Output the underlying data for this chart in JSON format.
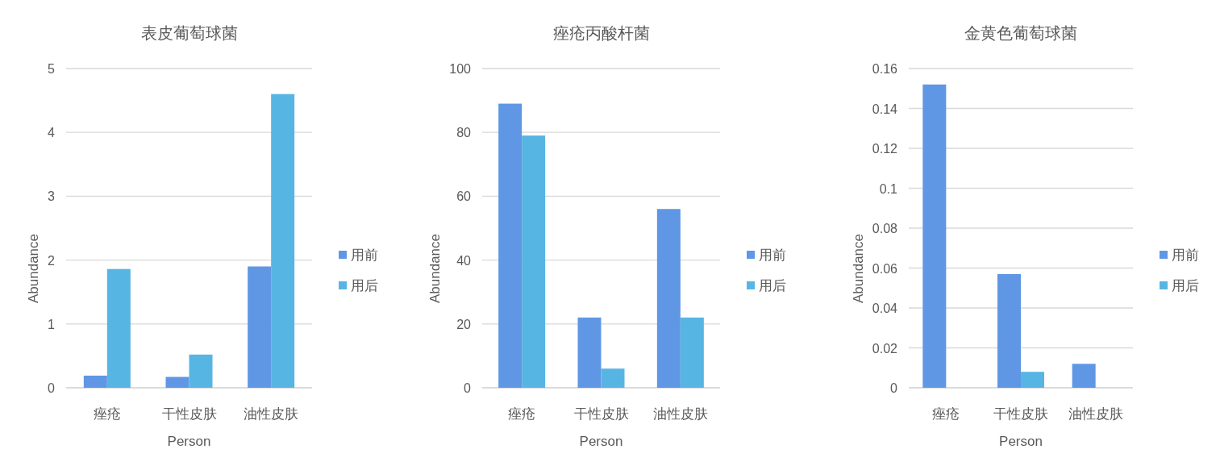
{
  "chart_data": [
    {
      "type": "bar",
      "title": "表皮葡萄球菌",
      "xlabel": "Person",
      "ylabel": "Abundance",
      "categories": [
        "痤疮",
        "干性皮肤",
        "油性皮肤"
      ],
      "series": [
        {
          "name": "用前",
          "color": "#5f97e5",
          "values": [
            0.19,
            0.17,
            1.9
          ]
        },
        {
          "name": "用后",
          "color": "#57b5e3",
          "values": [
            1.86,
            0.52,
            4.6
          ]
        }
      ],
      "ylim": [
        0,
        5
      ],
      "yticks": [
        0,
        1,
        2,
        3,
        4,
        5
      ],
      "grid": "y",
      "legend": "right"
    },
    {
      "type": "bar",
      "title": "痤疮丙酸杆菌",
      "xlabel": "Person",
      "ylabel": "Abundance",
      "categories": [
        "痤疮",
        "干性皮肤",
        "油性皮肤"
      ],
      "series": [
        {
          "name": "用前",
          "color": "#5f97e5",
          "values": [
            89,
            22,
            56
          ]
        },
        {
          "name": "用后",
          "color": "#57b5e3",
          "values": [
            79,
            6,
            22
          ]
        }
      ],
      "ylim": [
        0,
        100
      ],
      "yticks": [
        0,
        20,
        40,
        60,
        80,
        100
      ],
      "grid": "y",
      "legend": "right"
    },
    {
      "type": "bar",
      "title": "金黄色葡萄球菌",
      "xlabel": "Person",
      "ylabel": "Abundance",
      "categories": [
        "痤疮",
        "干性皮肤",
        "油性皮肤"
      ],
      "series": [
        {
          "name": "用前",
          "color": "#5f97e5",
          "values": [
            0.152,
            0.057,
            0.012
          ]
        },
        {
          "name": "用后",
          "color": "#57b5e3",
          "values": [
            0,
            0.008,
            0
          ]
        }
      ],
      "ylim": [
        0,
        0.16
      ],
      "yticks": [
        0,
        0.02,
        0.04,
        0.06,
        0.08,
        0.1,
        0.12,
        0.14,
        0.16
      ],
      "grid": "y",
      "legend": "right"
    }
  ]
}
